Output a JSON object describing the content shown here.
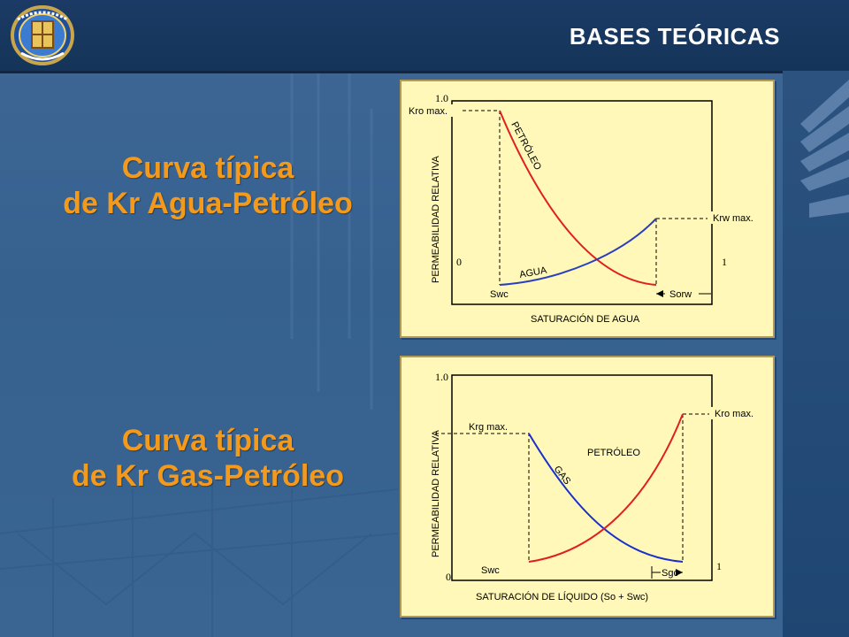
{
  "header": {
    "title": "BASES TEÓRICAS"
  },
  "logo": {
    "name": "emblem-icon"
  },
  "headings": {
    "water_oil": [
      "Curva típica",
      "de Kr Agua-Petróleo"
    ],
    "gas_oil": [
      "Curva típica",
      "de Kr Gas-Petróleo"
    ]
  },
  "diagram1": {
    "y_top_tick": "1.0",
    "y_label": "PERMEABILIDAD RELATIVA",
    "x_label": "SATURACIÓN DE AGUA",
    "zero_label": "0",
    "one_label": "1",
    "kro_max": "Kro max.",
    "krw_max": "Krw max.",
    "oil_curve": "PETRÓLEO",
    "water_curve": "AGUA",
    "swc": "Swc",
    "sorw": "Sorw"
  },
  "diagram2": {
    "y_top_tick": "1.0",
    "y_label": "PERMEABILIDAD RELATIVA",
    "x_label": "SATURACIÓN DE LÍQUIDO (So + Swc)",
    "zero_label": "0",
    "one_label": "1",
    "krg_max": "Krg max.",
    "kro_max": "Kro max.",
    "oil_curve": "PETRÓLEO",
    "gas_curve": "GAS",
    "swc": "Swc",
    "sgc": "Sgc"
  },
  "colors": {
    "heading": "#f39a1d",
    "oil_curve": "#e02020",
    "water_curve": "#2a3fc0",
    "gas_curve": "#1a2fcc",
    "panel": "#fff8b8"
  }
}
